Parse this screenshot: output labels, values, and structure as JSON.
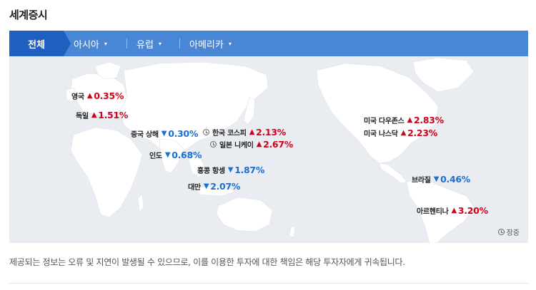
{
  "section_title": "세계증시",
  "tabs": [
    {
      "label": "전체",
      "active": true
    },
    {
      "label": "아시아",
      "active": false
    },
    {
      "label": "유럽",
      "active": false
    },
    {
      "label": "아메리카",
      "active": false
    }
  ],
  "indices": [
    {
      "id": "uk",
      "name": "영국",
      "direction": "up",
      "value": "0.35%",
      "closed": false
    },
    {
      "id": "de",
      "name": "독일",
      "direction": "up",
      "value": "1.51%",
      "closed": false
    },
    {
      "id": "cn",
      "name": "중국 상해",
      "direction": "down",
      "value": "0.30%",
      "closed": false
    },
    {
      "id": "kr",
      "name": "한국 코스피",
      "direction": "up",
      "value": "2.13%",
      "closed": true
    },
    {
      "id": "jp",
      "name": "일본 니케이",
      "direction": "up",
      "value": "2.67%",
      "closed": true
    },
    {
      "id": "in",
      "name": "인도",
      "direction": "down",
      "value": "0.68%",
      "closed": false
    },
    {
      "id": "hk",
      "name": "홍콩 항셍",
      "direction": "down",
      "value": "1.87%",
      "closed": false
    },
    {
      "id": "tw",
      "name": "대만",
      "direction": "down",
      "value": "2.07%",
      "closed": false
    },
    {
      "id": "dow",
      "name": "미국 다우존스",
      "direction": "up",
      "value": "2.83%",
      "closed": false
    },
    {
      "id": "nasdaq",
      "name": "미국 나스닥",
      "direction": "up",
      "value": "2.23%",
      "closed": false
    },
    {
      "id": "br",
      "name": "브라질",
      "direction": "down",
      "value": "0.46%",
      "closed": false
    },
    {
      "id": "ar",
      "name": "아르헨티나",
      "direction": "up",
      "value": "3.20%",
      "closed": false
    }
  ],
  "legend_label": "장중",
  "notice": "제공되는 정보는 오류 및 지연이 발생될 수 있으므로, 이를 이용한 투자에 대한 책임은 해당 투자자에게 귀속됩니다.",
  "colors": {
    "up": "#d0021b",
    "down": "#1a6fd6",
    "tab_bar": "#4a86d6",
    "tab_active": "#1f5fc0",
    "map_bg": "#e9ecf1",
    "land": "#ffffff"
  },
  "icons": {
    "up": "▲",
    "down": "▼",
    "caret": "▾"
  }
}
